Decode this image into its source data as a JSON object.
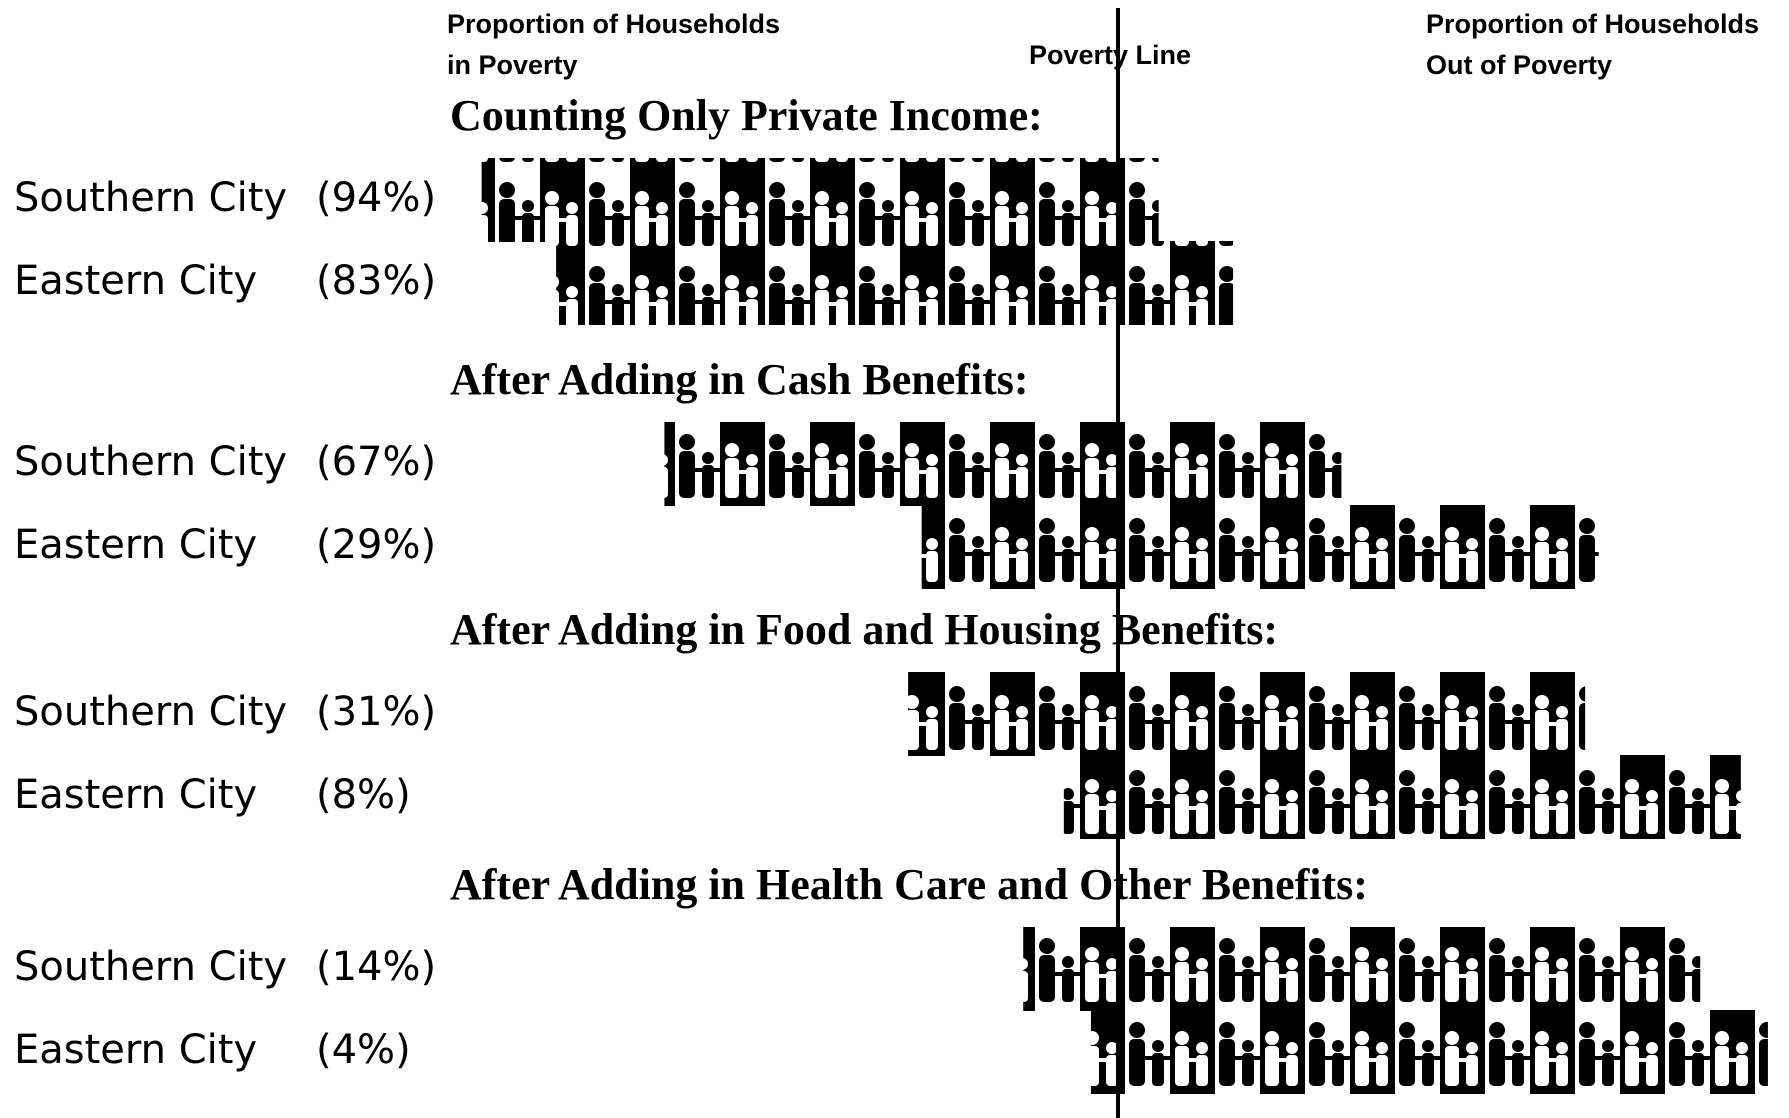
{
  "chart_data": {
    "type": "diverging-pictogram",
    "left_label": [
      "Proportion of Households",
      "in Poverty"
    ],
    "center_label": "Poverty Line",
    "right_label": [
      "Proportion of Households",
      "Out of Poverty"
    ],
    "groups": [
      {
        "title": "Counting Only Private Income:",
        "categories": [
          "Southern City",
          "Eastern City"
        ],
        "values": [
          94,
          83
        ],
        "value_labels": [
          "(94%)",
          "(83%)"
        ]
      },
      {
        "title": "After Adding in Cash Benefits:",
        "categories": [
          "Southern City",
          "Eastern City"
        ],
        "values": [
          67,
          29
        ],
        "value_labels": [
          "(67%)",
          "(29%)"
        ]
      },
      {
        "title": "After Adding in Food and Housing Benefits:",
        "categories": [
          "Southern City",
          "Eastern City"
        ],
        "values": [
          31,
          8
        ],
        "value_labels": [
          "(31%)",
          "(8%)"
        ]
      },
      {
        "title": "After Adding in Health Care and Other Benefits:",
        "categories": [
          "Southern City",
          "Eastern City"
        ],
        "values": [
          14,
          4
        ],
        "value_labels": [
          "(14%)",
          "(4%)"
        ]
      }
    ]
  }
}
